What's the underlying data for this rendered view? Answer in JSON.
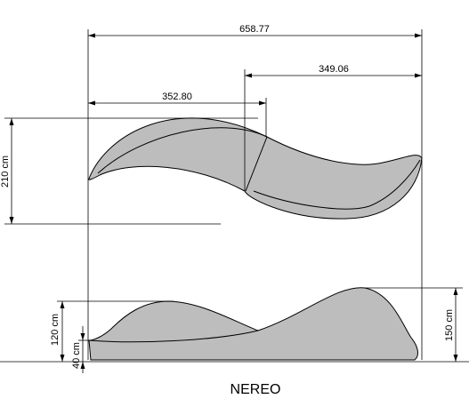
{
  "dimensions": {
    "total_width": "658.77",
    "left_section": "352.80",
    "right_section": "349.06",
    "plan_depth": "210 cm",
    "height_left": "120 cm",
    "seat_height": "40 cm",
    "height_right": "150 cm"
  },
  "title": "NEREO",
  "colors": {
    "fill": "#bdbdbd",
    "line": "#000000",
    "background": "#ffffff"
  }
}
